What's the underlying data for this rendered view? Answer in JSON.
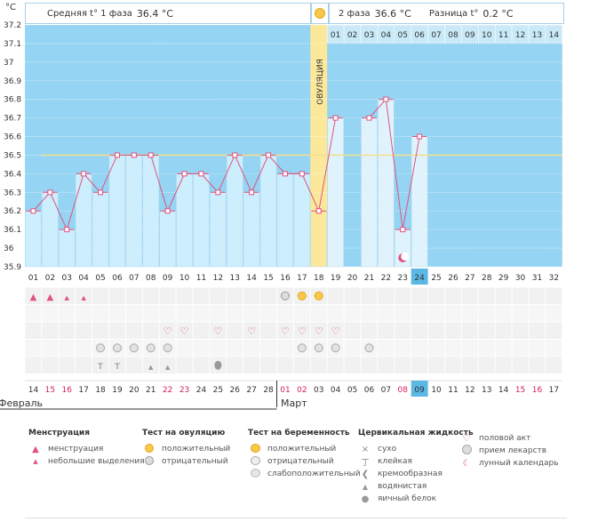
{
  "header": {
    "unit": "°C",
    "phase1_label": "Средняя t° 1 фаза",
    "phase1_value": "36.4 °C",
    "phase2_label": "2 фаза",
    "phase2_value": "36.6 °C",
    "diff_label": "Разница t°",
    "diff_value": "0.2 °C",
    "ovulation_label": "ОВУЛЯЦИЯ"
  },
  "chart_data": {
    "type": "line",
    "title": "",
    "ylabel": "°C",
    "ylim": [
      35.9,
      37.2
    ],
    "yticks": [
      "35.9",
      "36",
      "36.1",
      "36.2",
      "36.3",
      "36.4",
      "36.5",
      "36.6",
      "36.7",
      "36.8",
      "36.9",
      "37",
      "37.1",
      "37.2"
    ],
    "cycle_days": [
      "01",
      "02",
      "03",
      "04",
      "05",
      "06",
      "07",
      "08",
      "09",
      "10",
      "11",
      "12",
      "13",
      "14",
      "15",
      "16",
      "17",
      "18",
      "19",
      "20",
      "21",
      "22",
      "23",
      "24",
      "25",
      "26",
      "27",
      "28",
      "29",
      "30",
      "31",
      "32"
    ],
    "phase2_days": [
      "01",
      "02",
      "03",
      "04",
      "05",
      "06",
      "07",
      "08",
      "09",
      "10",
      "11",
      "12",
      "13",
      "14"
    ],
    "temperatures": [
      36.2,
      36.3,
      36.1,
      36.4,
      36.3,
      36.5,
      36.5,
      36.5,
      36.2,
      36.4,
      36.4,
      36.3,
      36.5,
      36.3,
      36.5,
      36.4,
      36.4,
      36.2,
      36.7,
      null,
      36.7,
      36.8,
      36.1,
      36.6
    ],
    "coverline": 36.5,
    "ovulation_day": 18,
    "current_day": 24,
    "dates": [
      "14",
      "15",
      "16",
      "17",
      "18",
      "19",
      "20",
      "21",
      "22",
      "23",
      "24",
      "25",
      "26",
      "27",
      "28",
      "01",
      "02",
      "03",
      "04",
      "05",
      "06",
      "07",
      "08",
      "09",
      "10",
      "11",
      "12",
      "13",
      "14",
      "15",
      "16",
      "17"
    ],
    "weekend_days": [
      2,
      3,
      9,
      10,
      16,
      17,
      23,
      30,
      31
    ],
    "months": [
      "Февраль",
      "Март"
    ]
  },
  "legend": {
    "menstruation": {
      "title": "Менструация",
      "items": [
        "менструация",
        "небольшие выделения"
      ]
    },
    "ovulation_test": {
      "title": "Тест на овуляцию",
      "items": [
        "положительный",
        "отрицательный"
      ]
    },
    "pregnancy_test": {
      "title": "Тест на беременность",
      "items": [
        "положительный",
        "отрицательный",
        "слабоположительный"
      ]
    },
    "cervical": {
      "title": "Цервикальная жидкость",
      "items": [
        "сухо",
        "клейкая",
        "кремообразная",
        "водянистая",
        "яичный белок"
      ]
    },
    "other": {
      "items": [
        "половой акт",
        "прием лекарств",
        "лунный календарь"
      ]
    }
  },
  "colors": {
    "phase1": "#b3e1f7",
    "phase2": "#d4edfa",
    "ovulation": "#fbe89b",
    "line": "#e0537f",
    "coverline": "#f3e08a",
    "accent": "#5bb8e4"
  }
}
